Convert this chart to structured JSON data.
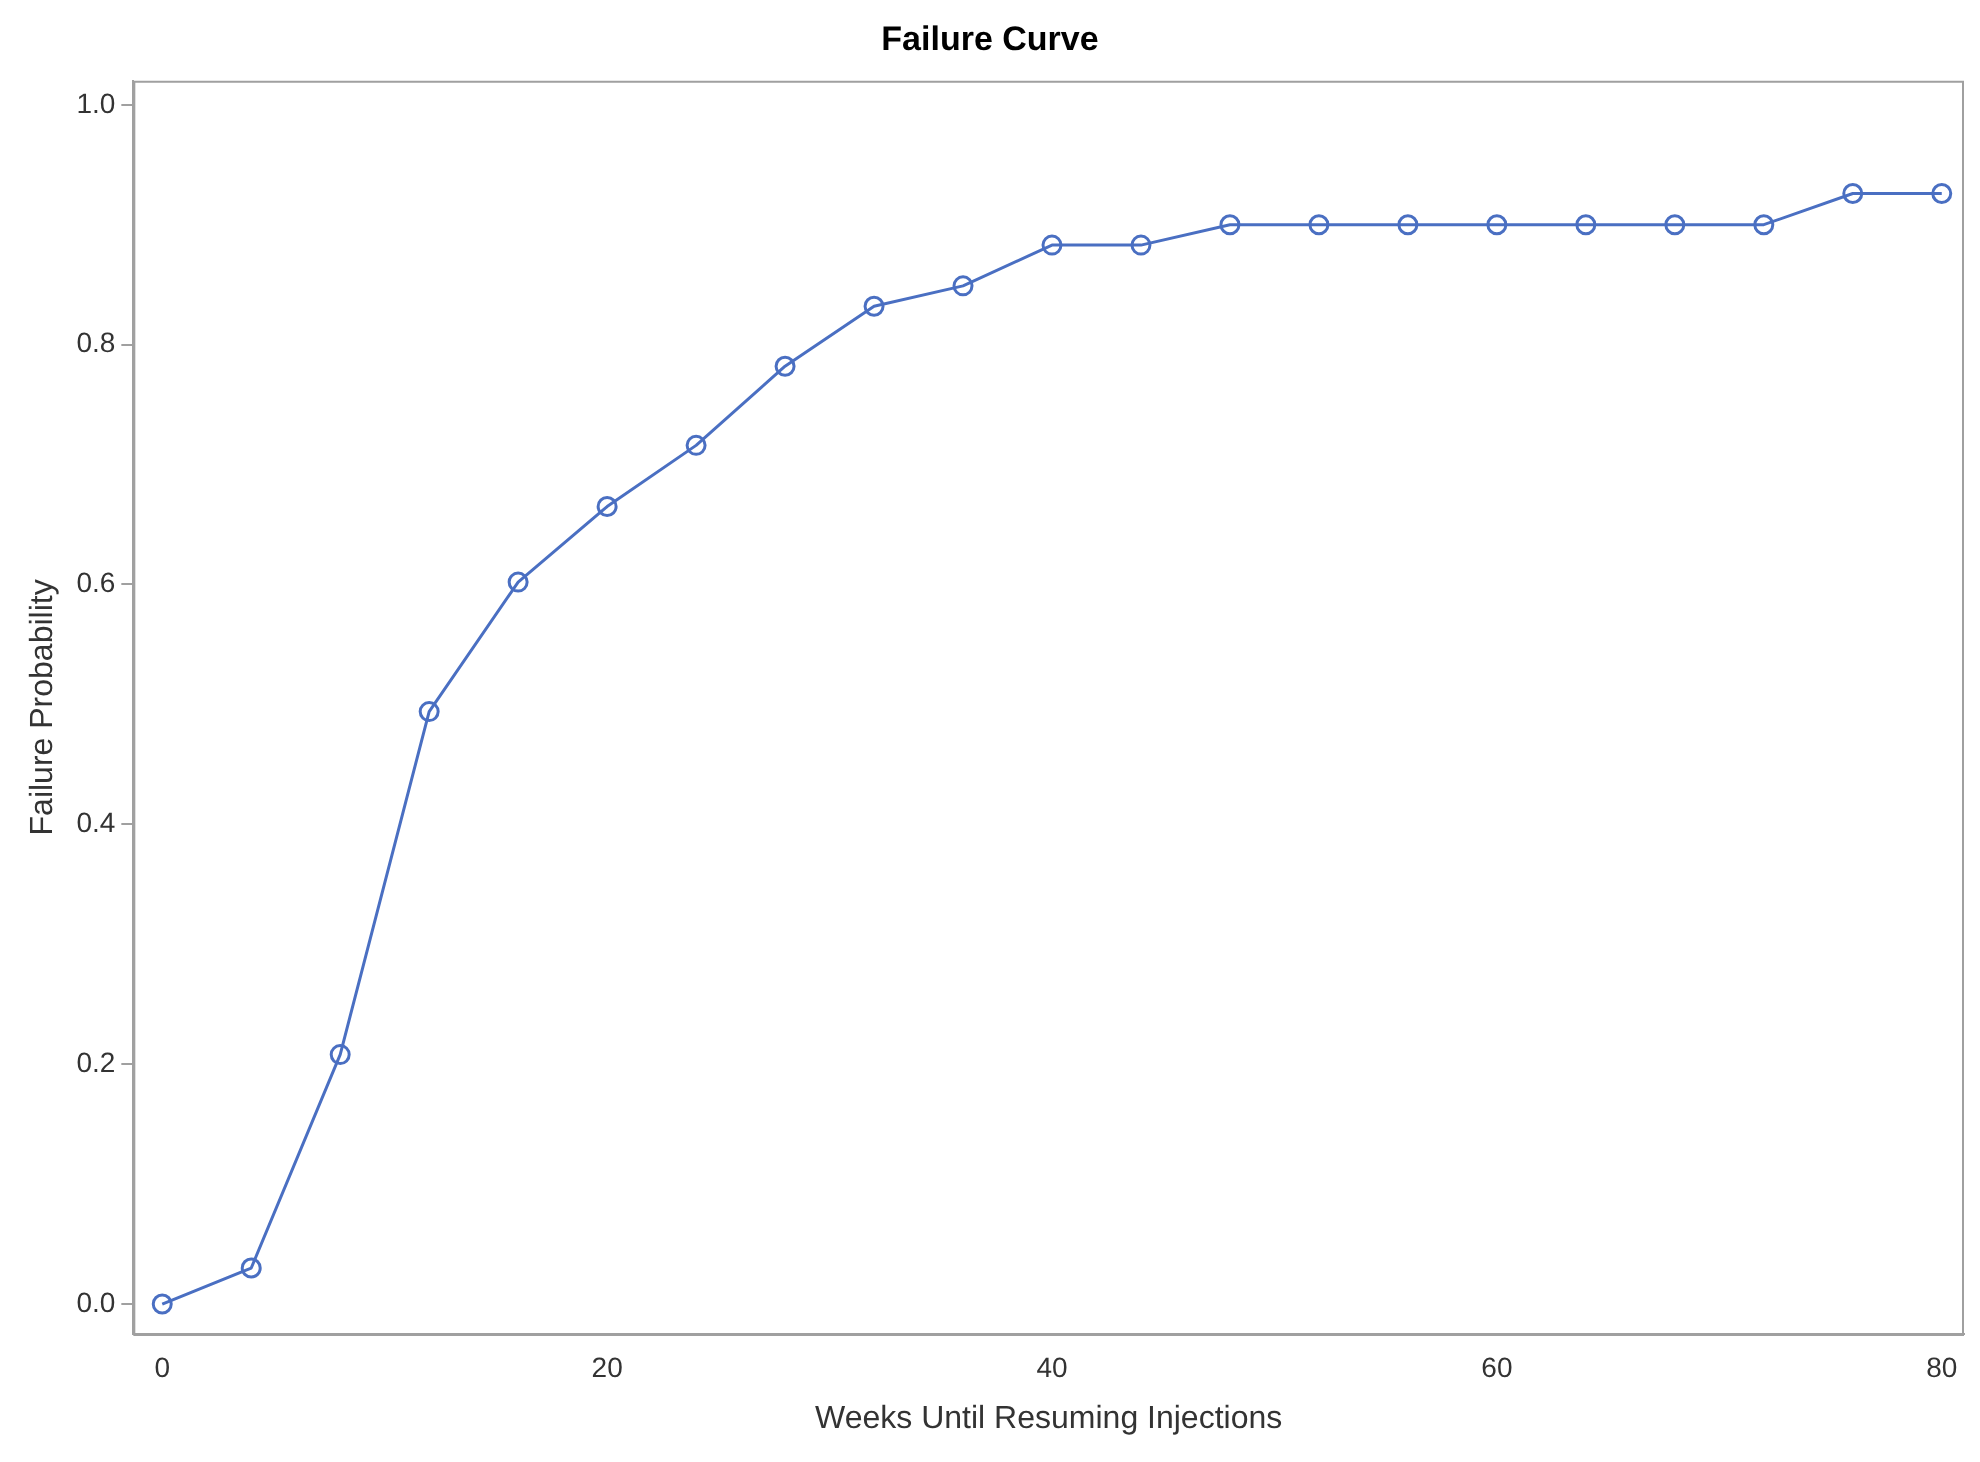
{
  "chart_data": {
    "type": "line",
    "title": "Failure Curve",
    "xlabel": "Weeks Until Resuming Injections",
    "ylabel": "Failure Probability",
    "x": [
      0,
      4,
      8,
      12,
      16,
      20,
      24,
      28,
      32,
      36,
      40,
      44,
      48,
      52,
      56,
      60,
      64,
      68,
      72,
      76,
      80
    ],
    "series": [
      {
        "color": "#4a6fc2",
        "values": [
          0,
          0.03,
          0.208,
          0.494,
          0.602,
          0.665,
          0.716,
          0.782,
          0.832,
          0.849,
          0.883,
          0.883,
          0.9,
          0.9,
          0.9,
          0.9,
          0.9,
          0.9,
          0.9,
          0.926,
          0.926
        ]
      }
    ],
    "xlim": [
      -1.3,
      81
    ],
    "ylim": [
      -0.025,
      1.02
    ],
    "xticks": [
      0,
      20,
      40,
      60,
      80
    ],
    "yticks": [
      {
        "value": 0,
        "label": "0.0"
      },
      0.2,
      0.4,
      0.6,
      0.8,
      {
        "value": 1,
        "label": "1.0"
      }
    ],
    "grid": false,
    "legend": false,
    "marker": "circle",
    "line_style": "solid"
  }
}
